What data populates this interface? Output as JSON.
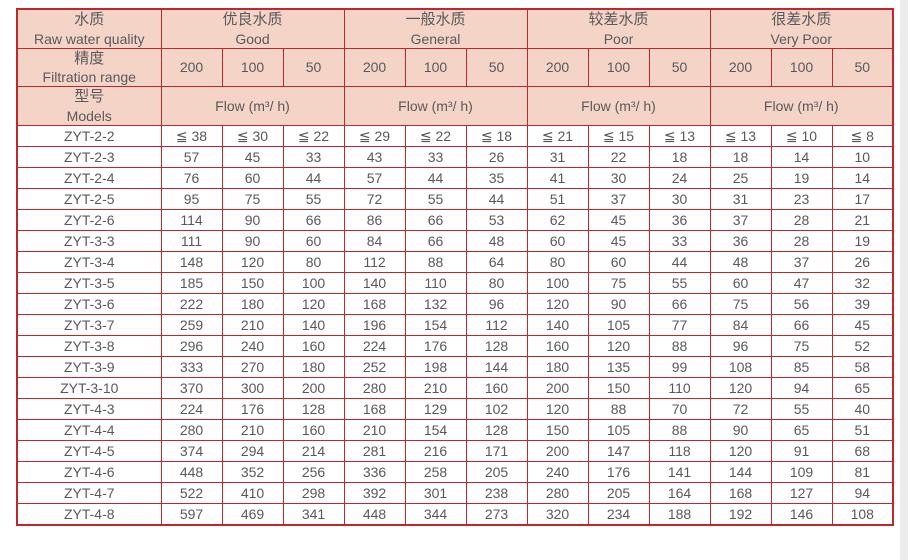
{
  "page": {
    "background": "#ffffff",
    "scrollbar_color": "#ececec"
  },
  "table": {
    "border_color": "#c0272d",
    "header_bg": "#f5d4c8",
    "text_color": "#595959",
    "quality_header": {
      "zh": "水质",
      "en": "Raw water quality"
    },
    "filtration_header": {
      "zh": "精度",
      "en": "Filtration range"
    },
    "models_header": {
      "zh": "型号",
      "en": "Models"
    },
    "quality_groups": [
      {
        "zh": "优良水质",
        "en": "Good"
      },
      {
        "zh": "一般水质",
        "en": "General"
      },
      {
        "zh": "较差水质",
        "en": "Poor"
      },
      {
        "zh": "很差水质",
        "en": "Very Poor"
      }
    ],
    "filtration_values": [
      "200",
      "100",
      "50"
    ],
    "flow_label": "Flow (m³/ h)",
    "rows": [
      {
        "model": "ZYT-2-2",
        "values": [
          "≦ 38",
          "≦ 30",
          "≦ 22",
          "≦ 29",
          "≦ 22",
          "≦ 18",
          "≦ 21",
          "≦ 15",
          "≦ 13",
          "≦ 13",
          "≦ 10",
          "≦ 8"
        ]
      },
      {
        "model": "ZYT-2-3",
        "values": [
          "57",
          "45",
          "33",
          "43",
          "33",
          "26",
          "31",
          "22",
          "18",
          "18",
          "14",
          "10"
        ]
      },
      {
        "model": "ZYT-2-4",
        "values": [
          "76",
          "60",
          "44",
          "57",
          "44",
          "35",
          "41",
          "30",
          "24",
          "25",
          "19",
          "14"
        ]
      },
      {
        "model": "ZYT-2-5",
        "values": [
          "95",
          "75",
          "55",
          "72",
          "55",
          "44",
          "51",
          "37",
          "30",
          "31",
          "23",
          "17"
        ]
      },
      {
        "model": "ZYT-2-6",
        "values": [
          "114",
          "90",
          "66",
          "86",
          "66",
          "53",
          "62",
          "45",
          "36",
          "37",
          "28",
          "21"
        ]
      },
      {
        "model": "ZYT-3-3",
        "values": [
          "111",
          "90",
          "60",
          "84",
          "66",
          "48",
          "60",
          "45",
          "33",
          "36",
          "28",
          "19"
        ]
      },
      {
        "model": "ZYT-3-4",
        "values": [
          "148",
          "120",
          "80",
          "112",
          "88",
          "64",
          "80",
          "60",
          "44",
          "48",
          "37",
          "26"
        ]
      },
      {
        "model": "ZYT-3-5",
        "values": [
          "185",
          "150",
          "100",
          "140",
          "110",
          "80",
          "100",
          "75",
          "55",
          "60",
          "47",
          "32"
        ]
      },
      {
        "model": "ZYT-3-6",
        "values": [
          "222",
          "180",
          "120",
          "168",
          "132",
          "96",
          "120",
          "90",
          "66",
          "75",
          "56",
          "39"
        ]
      },
      {
        "model": "ZYT-3-7",
        "values": [
          "259",
          "210",
          "140",
          "196",
          "154",
          "112",
          "140",
          "105",
          "77",
          "84",
          "66",
          "45"
        ]
      },
      {
        "model": "ZYT-3-8",
        "values": [
          "296",
          "240",
          "160",
          "224",
          "176",
          "128",
          "160",
          "120",
          "88",
          "96",
          "75",
          "52"
        ]
      },
      {
        "model": "ZYT-3-9",
        "values": [
          "333",
          "270",
          "180",
          "252",
          "198",
          "144",
          "180",
          "135",
          "99",
          "108",
          "85",
          "58"
        ]
      },
      {
        "model": "ZYT-3-10",
        "values": [
          "370",
          "300",
          "200",
          "280",
          "210",
          "160",
          "200",
          "150",
          "110",
          "120",
          "94",
          "65"
        ]
      },
      {
        "model": "ZYT-4-3",
        "values": [
          "224",
          "176",
          "128",
          "168",
          "129",
          "102",
          "120",
          "88",
          "70",
          "72",
          "55",
          "40"
        ]
      },
      {
        "model": "ZYT-4-4",
        "values": [
          "280",
          "210",
          "160",
          "210",
          "154",
          "128",
          "150",
          "105",
          "88",
          "90",
          "65",
          "51"
        ]
      },
      {
        "model": "ZYT-4-5",
        "values": [
          "374",
          "294",
          "214",
          "281",
          "216",
          "171",
          "200",
          "147",
          "118",
          "120",
          "91",
          "68"
        ]
      },
      {
        "model": "ZYT-4-6",
        "values": [
          "448",
          "352",
          "256",
          "336",
          "258",
          "205",
          "240",
          "176",
          "141",
          "144",
          "109",
          "81"
        ]
      },
      {
        "model": "ZYT-4-7",
        "values": [
          "522",
          "410",
          "298",
          "392",
          "301",
          "238",
          "280",
          "205",
          "164",
          "168",
          "127",
          "94"
        ]
      },
      {
        "model": "ZYT-4-8",
        "values": [
          "597",
          "469",
          "341",
          "448",
          "344",
          "273",
          "320",
          "234",
          "188",
          "192",
          "146",
          "108"
        ]
      }
    ]
  }
}
